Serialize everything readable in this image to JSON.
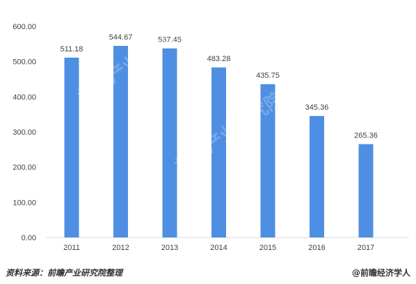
{
  "chart_data": {
    "type": "bar",
    "categories": [
      "2011",
      "2012",
      "2013",
      "2014",
      "2015",
      "2016",
      "2017"
    ],
    "values": [
      511.18,
      544.67,
      537.45,
      483.28,
      435.75,
      345.36,
      265.36
    ],
    "value_labels": [
      "511.18",
      "544.67",
      "537.45",
      "483.28",
      "435.75",
      "345.36",
      "265.36"
    ],
    "y_ticks": [
      "0.00",
      "100.00",
      "200.00",
      "300.00",
      "400.00",
      "500.00",
      "600.00"
    ],
    "ylim": [
      0,
      600
    ],
    "grid": false,
    "bar_color": "#4f8fe3",
    "title": "",
    "xlabel": "",
    "ylabel": ""
  },
  "footer": {
    "source": "资料来源：前瞻产业研究院整理",
    "brand": "@前瞻经济学人"
  },
  "watermark_text": "前瞻产业研究院"
}
